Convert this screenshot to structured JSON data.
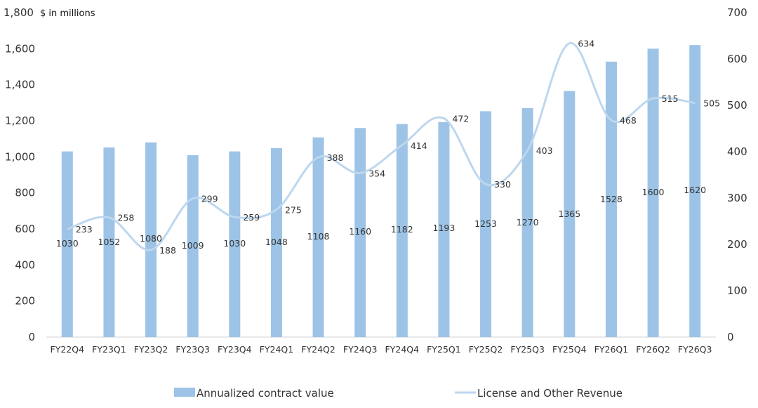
{
  "chart_data": {
    "type": "bar",
    "unit_label": "$ in millions",
    "categories": [
      "FY22Q4",
      "FY23Q1",
      "FY23Q2",
      "FY23Q3",
      "FY23Q4",
      "FY24Q1",
      "FY24Q2",
      "FY24Q3",
      "FY24Q4",
      "FY25Q1",
      "FY25Q2",
      "FY25Q3",
      "FY25Q4",
      "FY26Q1",
      "FY26Q2",
      "FY26Q3"
    ],
    "series": [
      {
        "name": "Annualized contract value",
        "kind": "bar",
        "axis": "left",
        "color": "#9dc3e6",
        "values": [
          1030,
          1052,
          1080,
          1009,
          1030,
          1048,
          1108,
          1160,
          1182,
          1193,
          1253,
          1270,
          1365,
          1528,
          1600,
          1620
        ]
      },
      {
        "name": "License and Other Revenue",
        "kind": "line",
        "axis": "right",
        "color": "#bdd7ee",
        "values": [
          233,
          258,
          188,
          299,
          259,
          275,
          388,
          354,
          414,
          472,
          330,
          403,
          634,
          468,
          515,
          505
        ]
      }
    ],
    "y_left": {
      "range": [
        0,
        1800
      ],
      "ticks": [
        0,
        200,
        400,
        600,
        800,
        1000,
        1200,
        1400,
        1600,
        1800
      ],
      "tick_labels": [
        "0",
        "200",
        "400",
        "600",
        "800",
        "1,000",
        "1,200",
        "1,400",
        "1,600",
        "1,800"
      ]
    },
    "y_right": {
      "range": [
        0,
        700
      ],
      "ticks": [
        0,
        100,
        200,
        300,
        400,
        500,
        600,
        700
      ],
      "tick_labels": [
        "0",
        "100",
        "200",
        "300",
        "400",
        "500",
        "600",
        "700"
      ]
    },
    "grid": false,
    "legend_position": "bottom"
  }
}
